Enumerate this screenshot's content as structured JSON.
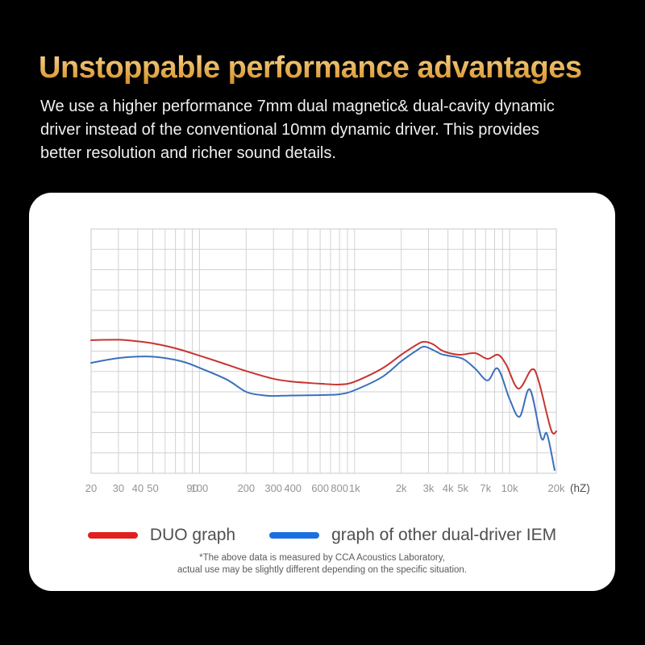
{
  "page": {
    "background": "#000000"
  },
  "heading": {
    "text": "Unstoppable performance advantages",
    "color_top": "#f7d088",
    "color_bottom": "#d49027"
  },
  "intro": {
    "lines": [
      "We use a higher performance 7mm dual magnetic& dual-cavity dynamic",
      "driver instead of the conventional 10mm dynamic driver. This provides",
      "better resolution and richer sound details."
    ]
  },
  "chart_data": {
    "type": "line",
    "title": "",
    "x_axis": {
      "scale": "log",
      "min": 20,
      "max": 20000,
      "unit_label": "(hZ)",
      "ticks": [
        {
          "f": 20,
          "label": "20"
        },
        {
          "f": 30,
          "label": "30"
        },
        {
          "f": 40,
          "label": "40"
        },
        {
          "f": 50,
          "label": "50"
        },
        {
          "f": 90,
          "label": "90"
        },
        {
          "f": 100,
          "label": "100"
        },
        {
          "f": 200,
          "label": "200"
        },
        {
          "f": 300,
          "label": "300"
        },
        {
          "f": 400,
          "label": "400"
        },
        {
          "f": 600,
          "label": "600"
        },
        {
          "f": 800,
          "label": "800"
        },
        {
          "f": 1000,
          "label": "1k"
        },
        {
          "f": 2000,
          "label": "2k"
        },
        {
          "f": 3000,
          "label": "3k"
        },
        {
          "f": 4000,
          "label": "4k"
        },
        {
          "f": 5000,
          "label": "5k"
        },
        {
          "f": 7000,
          "label": "7k"
        },
        {
          "f": 10000,
          "label": "10k"
        },
        {
          "f": 20000,
          "label": "20k"
        }
      ],
      "grid_freqs": [
        20,
        30,
        40,
        50,
        60,
        70,
        80,
        90,
        100,
        200,
        300,
        400,
        500,
        600,
        700,
        800,
        900,
        1000,
        2000,
        3000,
        4000,
        5000,
        6000,
        7000,
        8000,
        9000,
        10000,
        15000,
        20000
      ]
    },
    "y_axis": {
      "min": -30,
      "max": 30,
      "grid_step": 5,
      "tick_labels_visible": false
    },
    "grid": {
      "color": "#d2d2d6",
      "background": "#ffffff"
    },
    "legend_position": "bottom",
    "series": [
      {
        "name": "DUO graph",
        "color": "#c73530",
        "swatch_color": "#e11f1c",
        "points": [
          [
            20,
            2.7
          ],
          [
            30,
            2.8
          ],
          [
            40,
            2.4
          ],
          [
            50,
            1.9
          ],
          [
            70,
            0.7
          ],
          [
            100,
            -1.1
          ],
          [
            150,
            -3.3
          ],
          [
            200,
            -4.9
          ],
          [
            300,
            -6.8
          ],
          [
            400,
            -7.5
          ],
          [
            500,
            -7.8
          ],
          [
            600,
            -8.0
          ],
          [
            800,
            -8.2
          ],
          [
            1000,
            -7.5
          ],
          [
            1500,
            -4.3
          ],
          [
            2000,
            -0.9
          ],
          [
            2500,
            1.5
          ],
          [
            2800,
            2.3
          ],
          [
            3200,
            1.7
          ],
          [
            3600,
            0.3
          ],
          [
            4000,
            -0.4
          ],
          [
            4800,
            -0.9
          ],
          [
            6000,
            -0.5
          ],
          [
            7200,
            -1.9
          ],
          [
            8400,
            -0.9
          ],
          [
            9500,
            -3.3
          ],
          [
            11400,
            -9.2
          ],
          [
            13900,
            -4.5
          ],
          [
            15400,
            -7.4
          ],
          [
            18500,
            -19.3
          ],
          [
            20000,
            -19.7
          ]
        ]
      },
      {
        "name": "graph of other dual-driver IEM",
        "color": "#3b70bc",
        "swatch_color": "#1a70e0",
        "points": [
          [
            20,
            -2.9
          ],
          [
            30,
            -1.7
          ],
          [
            45,
            -1.3
          ],
          [
            60,
            -1.7
          ],
          [
            80,
            -2.7
          ],
          [
            100,
            -4.1
          ],
          [
            150,
            -7.0
          ],
          [
            200,
            -10.0
          ],
          [
            250,
            -10.8
          ],
          [
            300,
            -11.0
          ],
          [
            400,
            -10.9
          ],
          [
            600,
            -10.8
          ],
          [
            800,
            -10.6
          ],
          [
            1000,
            -9.6
          ],
          [
            1500,
            -6.4
          ],
          [
            2000,
            -2.5
          ],
          [
            2500,
            0.1
          ],
          [
            2800,
            1.1
          ],
          [
            3200,
            0.3
          ],
          [
            3600,
            -0.7
          ],
          [
            4000,
            -1.1
          ],
          [
            5000,
            -1.9
          ],
          [
            6000,
            -4.3
          ],
          [
            7200,
            -7.2
          ],
          [
            8400,
            -4.3
          ],
          [
            10000,
            -11.8
          ],
          [
            11600,
            -16.1
          ],
          [
            13500,
            -9.4
          ],
          [
            16000,
            -21.3
          ],
          [
            17400,
            -20.3
          ],
          [
            19500,
            -29.2
          ]
        ]
      }
    ],
    "tick_color": "#949494",
    "unit_color": "#4d4d4d"
  },
  "footnote": {
    "lines": [
      "*The above data is measured by CCA Acoustics Laboratory,",
      "actual use may be slightly different depending on the specific situation."
    ]
  }
}
